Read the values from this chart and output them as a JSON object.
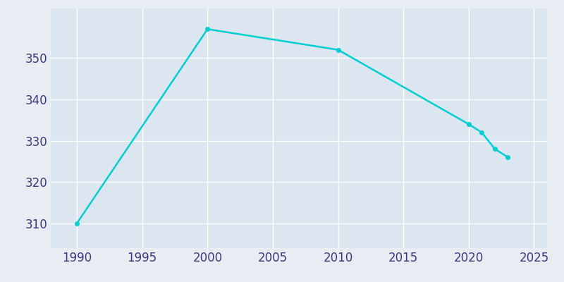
{
  "years": [
    1990,
    2000,
    2010,
    2020,
    2021,
    2022,
    2023
  ],
  "population": [
    310,
    357,
    352,
    334,
    332,
    328,
    326
  ],
  "line_color": "#00CED1",
  "fig_bg_color": "#e8edf4",
  "plot_bg_color": "#dce6f0",
  "grid_color": "#ffffff",
  "xlim": [
    1988,
    2026
  ],
  "ylim": [
    304,
    362
  ],
  "xticks": [
    1990,
    1995,
    2000,
    2005,
    2010,
    2015,
    2020,
    2025
  ],
  "yticks": [
    310,
    320,
    330,
    340,
    350
  ],
  "tick_label_color": "#3a3a7a",
  "marker": "o",
  "marker_size": 4,
  "linewidth": 1.8,
  "tick_fontsize": 12
}
